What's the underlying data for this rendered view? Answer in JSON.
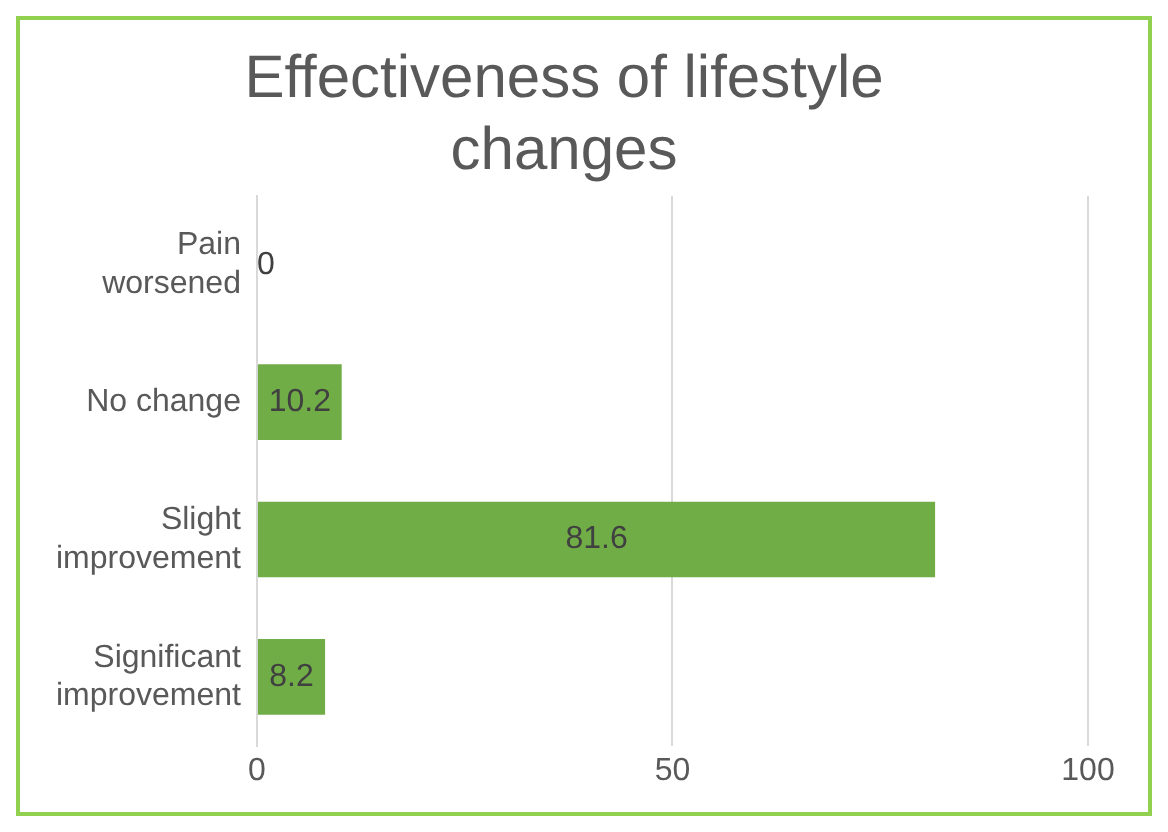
{
  "chart_data": {
    "type": "bar",
    "orientation": "horizontal",
    "title": "Effectiveness of lifestyle changes",
    "categories": [
      "Pain worsened",
      "No change",
      "Slight improvement",
      "Significant improvement"
    ],
    "values": [
      0,
      10.2,
      81.6,
      8.2
    ],
    "color": "#70ad47",
    "xlim": [
      0,
      100
    ],
    "xticks": [
      0,
      50,
      100
    ],
    "grid": "x",
    "data_labels": true,
    "legend": false
  }
}
